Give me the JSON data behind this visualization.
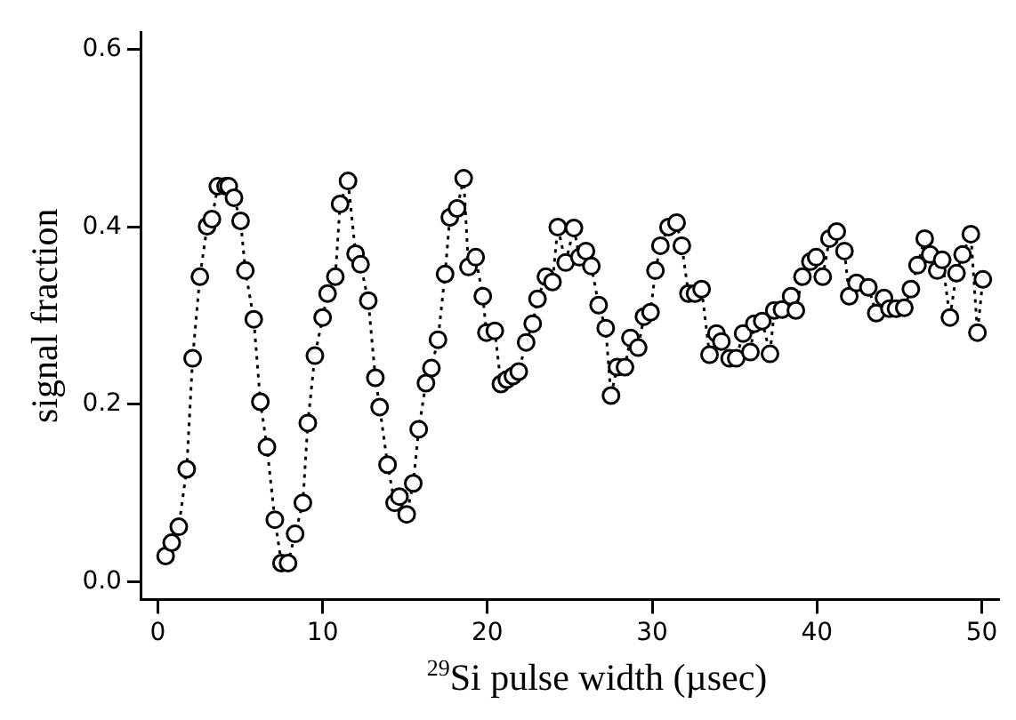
{
  "chart_data": {
    "type": "line",
    "xlabel": "$^{29}$Si pulse width (µsec)",
    "ylabel": "signal fraction",
    "xlim": [
      -1,
      51
    ],
    "ylim": [
      -0.02,
      0.62
    ],
    "xticks": [
      0,
      10,
      20,
      30,
      40,
      50
    ],
    "yticks": [
      {
        "value": 0,
        "label": "0.0"
      },
      {
        "value": 0.2,
        "label": "0.2"
      },
      {
        "value": 0.4,
        "label": "0.4"
      },
      {
        "value": 0.6,
        "label": "0.6"
      }
    ],
    "grid": false,
    "legend": false,
    "marker": "circle",
    "line_style": "dotted",
    "series": [
      {
        "color": "#000000",
        "x": [
          0.47,
          0.84,
          1.27,
          1.75,
          2.11,
          2.55,
          2.99,
          3.28,
          3.64,
          4.11,
          4.3,
          4.62,
          5.02,
          5.31,
          5.82,
          6.22,
          6.62,
          7.1,
          7.5,
          7.9,
          8.33,
          8.8,
          9.1,
          9.53,
          10.0,
          10.3,
          10.77,
          11.06,
          11.54,
          12.0,
          12.3,
          12.77,
          13.2,
          13.46,
          13.94,
          14.37,
          14.66,
          15.1,
          15.5,
          15.83,
          16.27,
          16.6,
          17.0,
          17.43,
          17.72,
          18.16,
          18.56,
          18.85,
          19.29,
          19.72,
          19.94,
          20.45,
          20.82,
          21.18,
          21.55,
          21.9,
          22.35,
          22.75,
          23.04,
          23.55,
          23.95,
          24.27,
          24.75,
          25.25,
          25.58,
          25.98,
          26.31,
          26.75,
          27.18,
          27.5,
          27.87,
          28.35,
          28.68,
          29.15,
          29.5,
          29.9,
          30.2,
          30.5,
          30.99,
          31.48,
          31.8,
          32.2,
          32.6,
          33.0,
          33.48,
          33.9,
          34.2,
          34.7,
          35.1,
          35.52,
          35.96,
          36.2,
          36.68,
          37.15,
          37.41,
          37.88,
          38.43,
          38.72,
          39.12,
          39.6,
          39.95,
          40.35,
          40.76,
          41.2,
          41.67,
          41.96,
          42.4,
          43.12,
          43.6,
          44.07,
          44.4,
          44.8,
          45.3,
          45.7,
          46.1,
          46.54,
          46.87,
          47.3,
          47.6,
          48.07,
          48.47,
          48.84,
          49.34,
          49.74,
          50.07
        ],
        "values": [
          0.029,
          0.044,
          0.062,
          0.127,
          0.252,
          0.344,
          0.401,
          0.409,
          0.446,
          0.446,
          0.446,
          0.433,
          0.407,
          0.351,
          0.296,
          0.203,
          0.152,
          0.07,
          0.021,
          0.021,
          0.054,
          0.089,
          0.179,
          0.255,
          0.298,
          0.325,
          0.344,
          0.426,
          0.452,
          0.37,
          0.358,
          0.317,
          0.23,
          0.197,
          0.132,
          0.089,
          0.096,
          0.076,
          0.111,
          0.172,
          0.224,
          0.241,
          0.273,
          0.347,
          0.411,
          0.421,
          0.455,
          0.355,
          0.366,
          0.322,
          0.281,
          0.283,
          0.223,
          0.228,
          0.232,
          0.237,
          0.27,
          0.291,
          0.319,
          0.344,
          0.338,
          0.4,
          0.36,
          0.399,
          0.366,
          0.373,
          0.356,
          0.312,
          0.286,
          0.21,
          0.242,
          0.242,
          0.275,
          0.264,
          0.299,
          0.304,
          0.351,
          0.379,
          0.4,
          0.405,
          0.379,
          0.325,
          0.325,
          0.33,
          0.256,
          0.28,
          0.271,
          0.252,
          0.252,
          0.28,
          0.259,
          0.291,
          0.294,
          0.257,
          0.306,
          0.307,
          0.322,
          0.306,
          0.344,
          0.361,
          0.366,
          0.344,
          0.387,
          0.395,
          0.373,
          0.322,
          0.337,
          0.332,
          0.303,
          0.32,
          0.308,
          0.308,
          0.309,
          0.33,
          0.357,
          0.387,
          0.369,
          0.351,
          0.363,
          0.298,
          0.348,
          0.369,
          0.392,
          0.281,
          0.341
        ]
      }
    ]
  }
}
